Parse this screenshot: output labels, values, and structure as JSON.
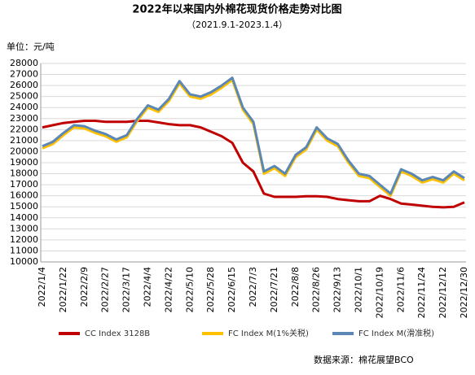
{
  "chart_data": {
    "type": "line",
    "title": "2022年以来国内外棉花现货价格走势对比图",
    "subtitle": "（2021.9.1-2023.1.4）",
    "y_label": "单位：元/吨",
    "source": "数据来源：棉花展望BCO",
    "categories": [
      "2022/1/4",
      null,
      "2022/1/22",
      null,
      "2022/2/9",
      null,
      "2022/2/27",
      null,
      "2022/3/17",
      null,
      "2022/4/4",
      null,
      "2022/4/22",
      null,
      "2022/5/10",
      null,
      "2022/5/28",
      null,
      "2022/6/15",
      null,
      "2022/7/3",
      null,
      "2022/7/21",
      null,
      "2022/8/8",
      null,
      "2022/8/26",
      null,
      "2022/9/13",
      null,
      "2022/10/1",
      null,
      "2022/10/19",
      null,
      "2022/11/6",
      null,
      "2022/11/24",
      null,
      "2022/12/12",
      null,
      "2022/12/30"
    ],
    "series": [
      {
        "name": "CC Index 3128B",
        "color": "#c00000",
        "values": [
          22200,
          22400,
          22600,
          22700,
          22800,
          22800,
          22700,
          22700,
          22700,
          22800,
          22800,
          22650,
          22500,
          22400,
          22400,
          22200,
          21800,
          21400,
          20800,
          19000,
          18200,
          16200,
          15900,
          15900,
          15900,
          15950,
          15950,
          15900,
          15700,
          15600,
          15500,
          15500,
          16000,
          15700,
          15300,
          15200,
          15100,
          15000,
          14950,
          15000,
          15400
        ]
      },
      {
        "name": "FC Index M(1%关税)",
        "color": "#ffc000",
        "values": [
          20300,
          20700,
          21500,
          22200,
          22100,
          21700,
          21400,
          20900,
          21300,
          22800,
          24000,
          23600,
          24600,
          26200,
          25000,
          24800,
          25200,
          25800,
          26500,
          23800,
          22500,
          18000,
          18500,
          17800,
          19500,
          20200,
          22000,
          21000,
          20500,
          19000,
          17800,
          17600,
          16800,
          16000,
          18200,
          17800,
          17200,
          17500,
          17200,
          18000,
          17400
        ]
      },
      {
        "name": "FC Index M(滑准税)",
        "color": "#5b87b5",
        "values": [
          20500,
          20900,
          21700,
          22400,
          22300,
          21900,
          21600,
          21100,
          21500,
          23000,
          24200,
          23800,
          24800,
          26400,
          25200,
          25000,
          25400,
          26000,
          26700,
          24000,
          22700,
          18200,
          18700,
          18000,
          19700,
          20400,
          22200,
          21200,
          20700,
          19200,
          18000,
          17800,
          17000,
          16200,
          18400,
          18000,
          17400,
          17700,
          17400,
          18200,
          17600
        ]
      }
    ],
    "ylim": [
      10000,
      28000
    ],
    "yticks": [
      10000,
      11000,
      12000,
      13000,
      14000,
      15000,
      16000,
      17000,
      18000,
      19000,
      20000,
      21000,
      22000,
      23000,
      24000,
      25000,
      26000,
      27000,
      28000
    ],
    "grid": true
  }
}
